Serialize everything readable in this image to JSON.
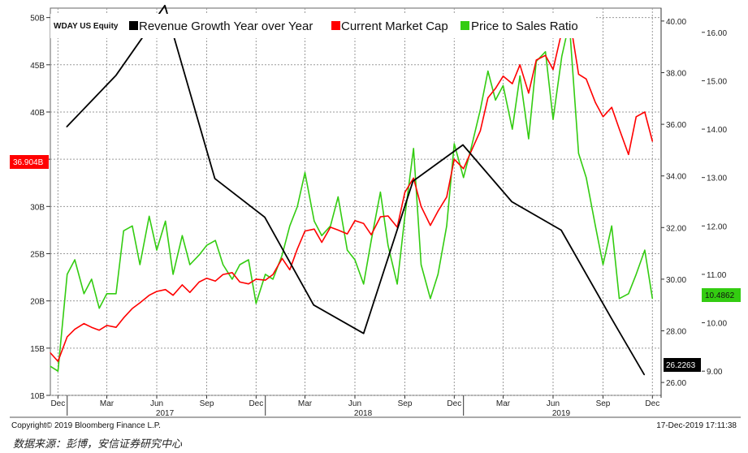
{
  "ticker": "WDAY US Equity",
  "legend": [
    {
      "label": "Revenue Growth Year over Year",
      "color": "#000000"
    },
    {
      "label": "Current Market Cap",
      "color": "#ff0000"
    },
    {
      "label": "Price to Sales Ratio",
      "color": "#33cc11"
    }
  ],
  "footer": {
    "copyright": "Copyright© 2019 Bloomberg Finance L.P.",
    "timestamp": "17-Dec-2019 17:11:38",
    "source": "数据来源：彭博，安信证券研究中心"
  },
  "chart_data": {
    "type": "line",
    "x_ticks": [
      "Dec",
      "Mar",
      "Jun",
      "Sep",
      "Dec",
      "Mar",
      "Jun",
      "Sep",
      "Dec",
      "Mar",
      "Jun",
      "Sep",
      "Dec"
    ],
    "x_years": [
      "2017",
      "2018",
      "2019"
    ],
    "x_range": [
      "2016-12-01",
      "2019-12-31"
    ],
    "left_axis": {
      "unit": "B",
      "ticks": [
        "10B",
        "15B",
        "20B",
        "25B",
        "30B",
        "35B",
        "40B",
        "45B",
        "50B"
      ],
      "range": [
        10,
        51
      ]
    },
    "right_axis_1": {
      "ticks": [
        "26.00",
        "28.00",
        "30.00",
        "32.00",
        "34.00",
        "36.00",
        "38.00",
        "40.00"
      ],
      "range": [
        25.5,
        40.5
      ]
    },
    "right_axis_2": {
      "ticks": [
        "9.00",
        "10.00",
        "11.00",
        "12.00",
        "13.00",
        "14.00",
        "15.00",
        "16.00"
      ],
      "range": [
        8.5,
        16.5
      ]
    },
    "last_values": {
      "market_cap": "36.904B",
      "revenue_growth": "26.2263",
      "price_to_sales": "10.4862"
    },
    "series": [
      {
        "name": "Revenue Growth Year over Year",
        "axis": "right_axis_1",
        "color": "#000000",
        "x": [
          "2016-12-31",
          "2017-04-01",
          "2017-06-30",
          "2017-09-30",
          "2017-12-31",
          "2018-03-31",
          "2018-07-01",
          "2018-09-30",
          "2018-12-31",
          "2019-03-31",
          "2019-06-30",
          "2019-09-30",
          "2019-11-30"
        ],
        "values": [
          35.9,
          37.9,
          40.6,
          33.9,
          32.4,
          29.0,
          27.9,
          33.8,
          35.2,
          33.0,
          31.9,
          28.5,
          26.3
        ]
      },
      {
        "name": "Current Market Cap",
        "axis": "left_axis",
        "color": "#ff0000",
        "x": [
          "2016-12-01",
          "2016-12-15",
          "2017-01-01",
          "2017-01-15",
          "2017-02-01",
          "2017-02-15",
          "2017-03-01",
          "2017-03-15",
          "2017-04-01",
          "2017-04-15",
          "2017-05-01",
          "2017-05-15",
          "2017-06-01",
          "2017-06-15",
          "2017-07-01",
          "2017-07-15",
          "2017-08-01",
          "2017-08-15",
          "2017-09-01",
          "2017-09-15",
          "2017-10-01",
          "2017-10-15",
          "2017-11-01",
          "2017-11-15",
          "2017-12-01",
          "2017-12-15",
          "2018-01-01",
          "2018-01-15",
          "2018-02-01",
          "2018-02-15",
          "2018-03-01",
          "2018-03-15",
          "2018-04-01",
          "2018-04-15",
          "2018-05-01",
          "2018-05-15",
          "2018-06-01",
          "2018-06-15",
          "2018-07-01",
          "2018-07-15",
          "2018-08-01",
          "2018-08-15",
          "2018-09-01",
          "2018-09-15",
          "2018-10-01",
          "2018-10-15",
          "2018-11-01",
          "2018-11-15",
          "2018-12-01",
          "2018-12-15",
          "2019-01-01",
          "2019-01-15",
          "2019-02-01",
          "2019-02-15",
          "2019-03-01",
          "2019-03-15",
          "2019-04-01",
          "2019-04-15",
          "2019-05-01",
          "2019-05-15",
          "2019-06-01",
          "2019-06-15",
          "2019-07-01",
          "2019-07-15",
          "2019-08-01",
          "2019-08-15",
          "2019-09-01",
          "2019-09-15",
          "2019-10-01",
          "2019-10-15",
          "2019-11-01",
          "2019-11-15",
          "2019-12-01",
          "2019-12-15"
        ],
        "values": [
          14.5,
          13.6,
          16.2,
          17.0,
          17.6,
          17.2,
          16.9,
          17.4,
          17.2,
          18.2,
          19.2,
          19.8,
          20.6,
          21.0,
          21.2,
          20.6,
          21.7,
          20.9,
          22.0,
          22.4,
          22.1,
          22.8,
          23.0,
          22.0,
          21.8,
          22.3,
          22.2,
          22.8,
          24.5,
          23.3,
          25.5,
          27.4,
          27.6,
          26.2,
          27.8,
          27.5,
          27.1,
          28.5,
          28.2,
          27.0,
          28.9,
          29.0,
          27.8,
          31.5,
          33.0,
          30.0,
          28.0,
          29.5,
          31.0,
          35.0,
          34.0,
          35.8,
          38.0,
          41.5,
          42.5,
          43.8,
          43.0,
          45.0,
          42.0,
          45.5,
          46.0,
          44.5,
          48.5,
          50.2,
          44.0,
          43.5,
          41.0,
          39.5,
          40.5,
          38.2,
          35.5,
          39.5,
          40.0,
          36.9
        ]
      },
      {
        "name": "Price to Sales Ratio",
        "axis": "right_axis_2",
        "color": "#33cc11",
        "x": [
          "2016-12-01",
          "2016-12-15",
          "2017-01-01",
          "2017-01-15",
          "2017-02-01",
          "2017-02-15",
          "2017-03-01",
          "2017-03-15",
          "2017-04-01",
          "2017-04-15",
          "2017-05-01",
          "2017-05-15",
          "2017-06-01",
          "2017-06-15",
          "2017-07-01",
          "2017-07-15",
          "2017-08-01",
          "2017-08-15",
          "2017-09-01",
          "2017-09-15",
          "2017-10-01",
          "2017-10-15",
          "2017-11-01",
          "2017-11-15",
          "2017-12-01",
          "2017-12-15",
          "2018-01-01",
          "2018-01-15",
          "2018-02-01",
          "2018-02-15",
          "2018-03-01",
          "2018-03-15",
          "2018-04-01",
          "2018-04-15",
          "2018-05-01",
          "2018-05-15",
          "2018-06-01",
          "2018-06-15",
          "2018-07-01",
          "2018-07-15",
          "2018-08-01",
          "2018-08-15",
          "2018-09-01",
          "2018-09-15",
          "2018-10-01",
          "2018-10-15",
          "2018-11-01",
          "2018-11-15",
          "2018-12-01",
          "2018-12-15",
          "2019-01-01",
          "2019-01-15",
          "2019-02-01",
          "2019-02-15",
          "2019-03-01",
          "2019-03-15",
          "2019-04-01",
          "2019-04-15",
          "2019-05-01",
          "2019-05-15",
          "2019-06-01",
          "2019-06-15",
          "2019-07-01",
          "2019-07-15",
          "2019-08-01",
          "2019-08-15",
          "2019-09-01",
          "2019-09-15",
          "2019-10-01",
          "2019-10-15",
          "2019-11-01",
          "2019-11-15",
          "2019-12-01",
          "2019-12-15"
        ],
        "values": [
          9.1,
          9.0,
          11.0,
          11.3,
          10.6,
          10.9,
          10.3,
          10.6,
          10.6,
          11.9,
          12.0,
          11.2,
          12.2,
          11.5,
          12.1,
          11.0,
          11.8,
          11.2,
          11.4,
          11.6,
          11.7,
          11.2,
          10.9,
          11.2,
          11.3,
          10.4,
          11.0,
          10.9,
          11.4,
          12.0,
          12.4,
          13.1,
          12.1,
          11.8,
          12.0,
          12.6,
          11.5,
          11.3,
          10.8,
          11.7,
          12.7,
          11.6,
          10.8,
          12.2,
          13.6,
          11.2,
          10.5,
          11.0,
          12.0,
          13.7,
          13.0,
          13.6,
          14.4,
          15.2,
          14.6,
          14.9,
          14.0,
          15.1,
          13.8,
          15.4,
          15.6,
          14.2,
          15.5,
          16.2,
          13.5,
          13.0,
          12.0,
          11.2,
          12.0,
          10.5,
          10.6,
          11.0,
          11.5,
          10.5
        ]
      }
    ]
  }
}
